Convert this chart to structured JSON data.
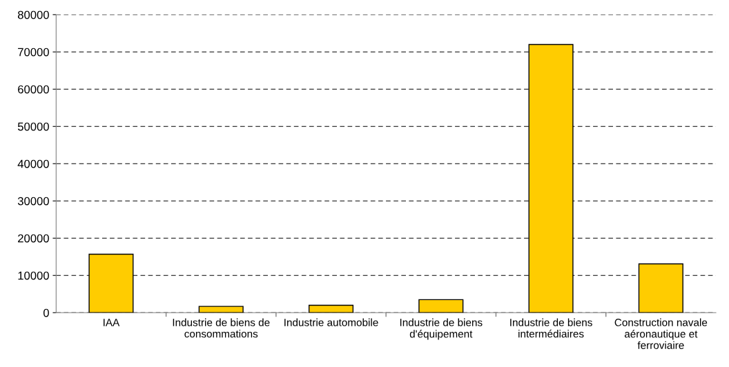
{
  "chart_data": {
    "type": "bar",
    "categories": [
      "IAA",
      "Industrie de biens de\nconsommations",
      "Industrie automobile",
      "Industrie de biens\nd'équipement",
      "Industrie de biens\nintermédiaires",
      "Construction navale\naéronautique et\nferroviaire"
    ],
    "values": [
      15700,
      1700,
      2000,
      3500,
      72000,
      13100
    ],
    "color": "#ffcc00",
    "ylim": [
      0,
      80000
    ],
    "yticks": [
      0,
      10000,
      20000,
      30000,
      40000,
      50000,
      60000,
      70000,
      80000
    ],
    "grid": "y",
    "line_style": "dashed"
  }
}
